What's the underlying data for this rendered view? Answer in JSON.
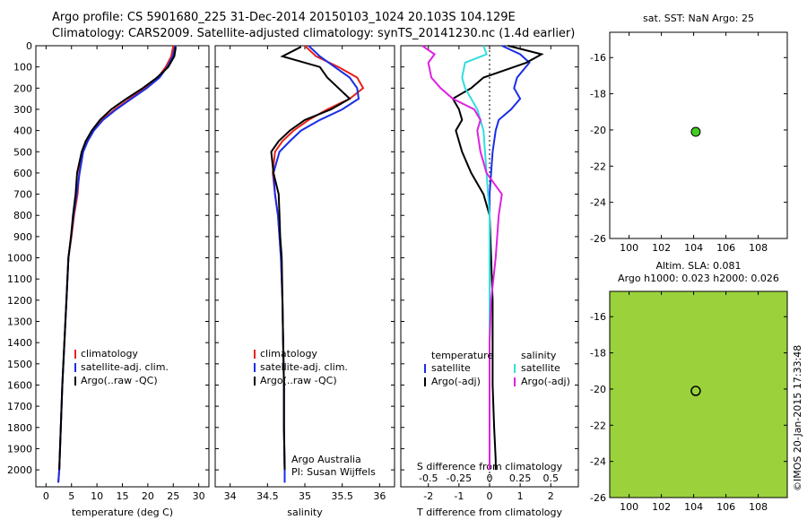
{
  "header": {
    "line1": "Argo profile: CS 5901680_225 31-Dec-2014 20150103_1024 20.103S 104.129E",
    "line2": "Climatology: CARS2009. Satellite-adjusted climatology: synTS_20141230.nc (1.4d earlier)"
  },
  "footer_credit": "©IMOS 20-Jan-2015 17:33:48",
  "colors": {
    "climatology": "#e8221b",
    "satellite": "#1a2ee6",
    "argo": "#000000",
    "sat_diff": "#33dddd",
    "argo_diff": "#e020e0",
    "marker": "#44cc22"
  },
  "depth_ticks": [
    0,
    100,
    200,
    300,
    400,
    500,
    600,
    700,
    800,
    900,
    1000,
    1100,
    1200,
    1300,
    1400,
    1500,
    1600,
    1700,
    1800,
    1900,
    2000
  ],
  "panels": {
    "temperature": {
      "xlabel": "temperature (deg C)",
      "xticks": [
        0,
        5,
        10,
        15,
        20,
        25,
        30
      ],
      "xlim": [
        -2,
        32
      ],
      "legend": [
        "climatology",
        "satellite-adj. clim.",
        "Argo(..raw -QC)"
      ]
    },
    "salinity": {
      "xlabel": "salinity",
      "xticks": [
        34,
        34.5,
        35,
        35.5,
        36
      ],
      "xlim": [
        33.8,
        36.2
      ],
      "legend": [
        "climatology",
        "satellite-adj. clim.",
        "Argo(..raw -QC)"
      ],
      "note1": "Argo Australia",
      "note2": "PI: Susan Wijffels"
    },
    "difference": {
      "xlabel": "T difference from climatology",
      "xlabel_top": "S difference from climatology",
      "xticks_t": [
        -2,
        -1,
        0,
        1,
        2
      ],
      "xticks_s": [
        "-0.5",
        "-0.25",
        "0",
        "0.25",
        "0.5"
      ],
      "xlim": [
        -2.9,
        2.9
      ],
      "legend_t_title": "temperature",
      "legend_t": [
        "satellite",
        "Argo(-adj)"
      ],
      "legend_s_title": "salinity",
      "legend_s": [
        "satellite",
        "Argo(-adj)"
      ]
    },
    "sst_map": {
      "title": "sat. SST: NaN Argo: 25",
      "xticks": [
        100,
        102,
        104,
        106,
        108
      ],
      "yticks": [
        -16,
        -18,
        -20,
        -22,
        -24,
        -26
      ],
      "xlim": [
        98.8,
        109.8
      ],
      "ylim": [
        -26,
        -14.6
      ],
      "float": {
        "lon": 104.129,
        "lat": -20.103
      }
    },
    "sla_map": {
      "title1": "Altim. SLA: 0.081",
      "title2": "Argo h1000: 0.023 h2000: 0.026",
      "xticks": [
        100,
        102,
        104,
        106,
        108
      ],
      "yticks": [
        -16,
        -18,
        -20,
        -22,
        -24,
        -26
      ],
      "xlim": [
        98.8,
        109.8
      ],
      "ylim": [
        -26,
        -14.6
      ],
      "float": {
        "lon": 104.129,
        "lat": -20.103
      }
    }
  },
  "chart_data": [
    {
      "type": "line",
      "title": "",
      "xlabel": "temperature (deg C)",
      "ylabel": "",
      "ylim": [
        2080,
        0
      ],
      "xlim": [
        -2,
        32
      ],
      "series": [
        {
          "name": "climatology",
          "x": [
            25.0,
            24.6,
            23.5,
            22.0,
            19.5,
            16.5,
            13.5,
            11.0,
            9.2,
            8.0,
            7.2,
            6.5,
            6.2,
            5.5,
            5.0,
            4.4,
            4.0,
            3.6,
            3.2,
            2.9,
            2.6,
            2.4
          ],
          "y": [
            0,
            50,
            100,
            150,
            200,
            250,
            300,
            350,
            400,
            450,
            500,
            600,
            700,
            800,
            900,
            1000,
            1200,
            1400,
            1600,
            1800,
            2000,
            2060
          ]
        },
        {
          "name": "satellite-adj. clim.",
          "x": [
            25.4,
            24.9,
            23.8,
            22.3,
            19.8,
            16.8,
            13.8,
            11.2,
            9.4,
            8.2,
            7.3,
            6.6,
            6.0,
            5.4,
            4.9,
            4.4,
            4.0,
            3.6,
            3.2,
            2.9,
            2.6,
            2.4
          ],
          "y": [
            0,
            50,
            100,
            150,
            200,
            250,
            300,
            350,
            400,
            450,
            500,
            600,
            700,
            800,
            900,
            1000,
            1200,
            1400,
            1600,
            1800,
            2000,
            2060
          ]
        },
        {
          "name": "Argo(..raw -QC)",
          "x": [
            25.5,
            25.2,
            24.0,
            21.8,
            19.0,
            15.8,
            12.8,
            10.6,
            9.0,
            7.8,
            7.0,
            6.1,
            5.8,
            5.3,
            4.9,
            4.4,
            4.0,
            3.6,
            3.2,
            2.9,
            2.6
          ],
          "y": [
            5,
            50,
            100,
            150,
            200,
            250,
            300,
            350,
            400,
            450,
            500,
            600,
            700,
            800,
            900,
            1000,
            1200,
            1400,
            1600,
            1800,
            2000
          ]
        }
      ]
    },
    {
      "type": "line",
      "title": "",
      "xlabel": "salinity",
      "ylabel": "",
      "ylim": [
        2080,
        0
      ],
      "xlim": [
        33.8,
        36.2
      ],
      "series": [
        {
          "name": "climatology",
          "x": [
            35.0,
            35.15,
            35.45,
            35.7,
            35.78,
            35.6,
            35.3,
            35.05,
            34.85,
            34.7,
            34.6,
            34.57,
            34.6,
            34.64,
            34.66,
            34.68,
            34.7,
            34.71,
            34.72,
            34.72,
            34.73,
            34.73
          ],
          "y": [
            0,
            50,
            100,
            150,
            200,
            250,
            300,
            350,
            400,
            450,
            500,
            600,
            700,
            800,
            900,
            1000,
            1200,
            1400,
            1600,
            1800,
            2000,
            2060
          ]
        },
        {
          "name": "satellite-adj. clim.",
          "x": [
            35.05,
            35.2,
            35.4,
            35.6,
            35.7,
            35.72,
            35.5,
            35.2,
            34.95,
            34.8,
            34.66,
            34.58,
            34.6,
            34.64,
            34.66,
            34.68,
            34.7,
            34.71,
            34.72,
            34.72,
            34.73,
            34.73
          ],
          "y": [
            0,
            50,
            100,
            150,
            200,
            250,
            300,
            350,
            400,
            450,
            500,
            600,
            700,
            800,
            900,
            1000,
            1200,
            1400,
            1600,
            1800,
            2000,
            2060
          ]
        },
        {
          "name": "Argo(..raw -QC)",
          "x": [
            34.95,
            34.7,
            35.2,
            35.3,
            35.45,
            35.6,
            35.35,
            35.0,
            34.8,
            34.65,
            34.55,
            34.58,
            34.65,
            34.66,
            34.67,
            34.69,
            34.7,
            34.71,
            34.72,
            34.72,
            34.73
          ],
          "y": [
            5,
            50,
            100,
            150,
            200,
            250,
            300,
            350,
            400,
            450,
            500,
            600,
            700,
            800,
            900,
            1000,
            1200,
            1400,
            1600,
            1800,
            2000
          ]
        }
      ]
    },
    {
      "type": "line",
      "title": "",
      "xlabel": "T difference from climatology",
      "ylabel": "",
      "ylim": [
        2080,
        0
      ],
      "xlim": [
        -2.9,
        2.9
      ],
      "series": [
        {
          "name": "satellite",
          "x": [
            0.4,
            1.0,
            1.3,
            0.9,
            0.8,
            1.0,
            0.7,
            0.3,
            0.2,
            0.1,
            0.05,
            0.0,
            0.0,
            0.0,
            0.0,
            0.0,
            0.0,
            0.0,
            0.0,
            0.0
          ],
          "y": [
            0,
            40,
            80,
            150,
            200,
            250,
            300,
            350,
            400,
            500,
            600,
            700,
            800,
            1000,
            1200,
            1400,
            1600,
            1800,
            1950,
            2000
          ]
        },
        {
          "name": "Argo(-adj)",
          "x": [
            0.6,
            1.7,
            1.2,
            -0.2,
            -0.6,
            -1.2,
            -1.0,
            -0.9,
            -1.1,
            -0.9,
            -0.6,
            -0.2,
            0.0,
            0.05,
            0.1,
            0.1,
            0.1,
            0.15,
            0.2,
            0.2
          ],
          "y": [
            0,
            40,
            80,
            150,
            200,
            250,
            300,
            350,
            400,
            500,
            600,
            700,
            800,
            1000,
            1200,
            1400,
            1600,
            1800,
            1950,
            2000
          ]
        },
        {
          "name": "salinity satellite",
          "x": [
            -0.2,
            -0.1,
            -0.8,
            -0.9,
            -0.8,
            -0.6,
            -0.4,
            -0.3,
            -0.2,
            -0.15,
            -0.1,
            -0.05,
            0.0,
            0.0,
            0.0,
            0.0,
            0.0,
            0.0,
            0.0,
            0.0
          ],
          "y": [
            0,
            40,
            80,
            150,
            200,
            250,
            300,
            350,
            400,
            500,
            600,
            700,
            800,
            1000,
            1200,
            1400,
            1600,
            1800,
            1950,
            2000
          ]
        },
        {
          "name": "salinity Argo(-adj)",
          "x": [
            -2.2,
            -1.8,
            -2.0,
            -1.9,
            -1.6,
            -1.2,
            -0.5,
            -0.3,
            -0.4,
            -0.3,
            -0.1,
            0.4,
            0.3,
            0.2,
            0.05,
            0.0,
            0.0,
            0.0,
            0.0,
            0.0
          ],
          "y": [
            0,
            40,
            80,
            150,
            200,
            250,
            300,
            350,
            400,
            500,
            600,
            700,
            800,
            1000,
            1200,
            1400,
            1600,
            1800,
            1950,
            2000
          ]
        }
      ]
    }
  ]
}
